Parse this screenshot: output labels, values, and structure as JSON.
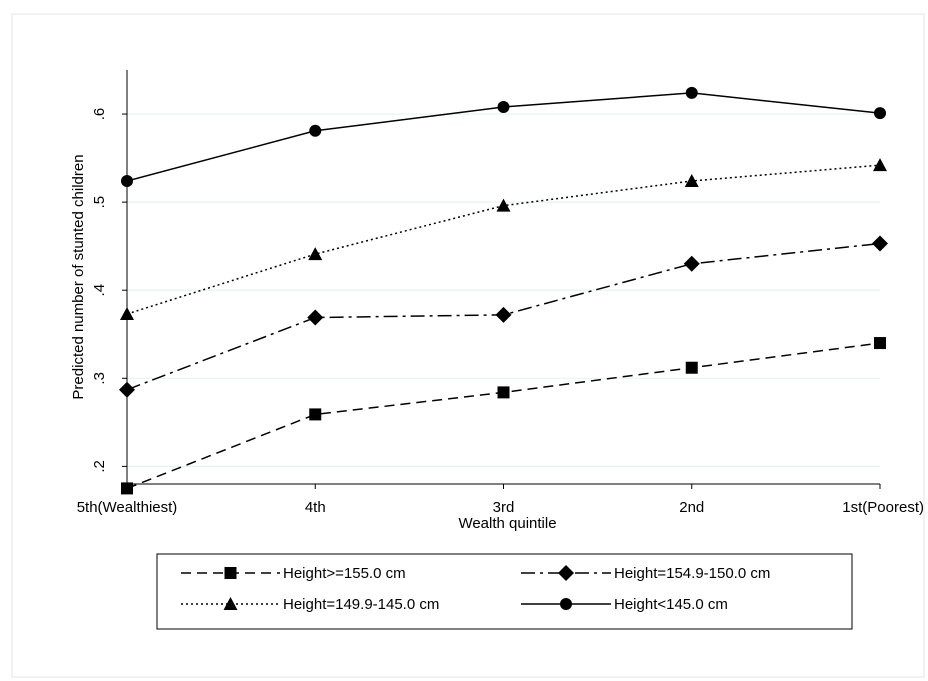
{
  "chart_data": {
    "type": "line",
    "title": "",
    "xlabel": "Wealth quintile",
    "ylabel": "Predicted number of stunted children",
    "categories": [
      "5th(Wealthiest)",
      "4th",
      "3rd",
      "2nd",
      "1st(Poorest)"
    ],
    "ylim": [
      0.18,
      0.65
    ],
    "yticks": [
      0.2,
      0.3,
      0.4,
      0.5,
      0.6
    ],
    "ytick_labels": [
      ".2",
      ".3",
      ".4",
      ".5",
      ".6"
    ],
    "grid": true,
    "legend_position": "bottom",
    "series": [
      {
        "name": "Height>=155.0 cm",
        "values": [
          0.175,
          0.259,
          0.284,
          0.312,
          0.34
        ],
        "marker": "square",
        "dash": "dashed"
      },
      {
        "name": "Height=154.9-150.0 cm",
        "values": [
          0.287,
          0.369,
          0.372,
          0.43,
          0.453
        ],
        "marker": "diamond",
        "dash": "dashdot"
      },
      {
        "name": "Height=149.9-145.0 cm",
        "values": [
          0.373,
          0.441,
          0.496,
          0.524,
          0.542
        ],
        "marker": "triangle",
        "dash": "dotted"
      },
      {
        "name": "Height<145.0 cm",
        "values": [
          0.524,
          0.581,
          0.608,
          0.624,
          0.601
        ],
        "marker": "circle",
        "dash": "solid"
      }
    ]
  }
}
